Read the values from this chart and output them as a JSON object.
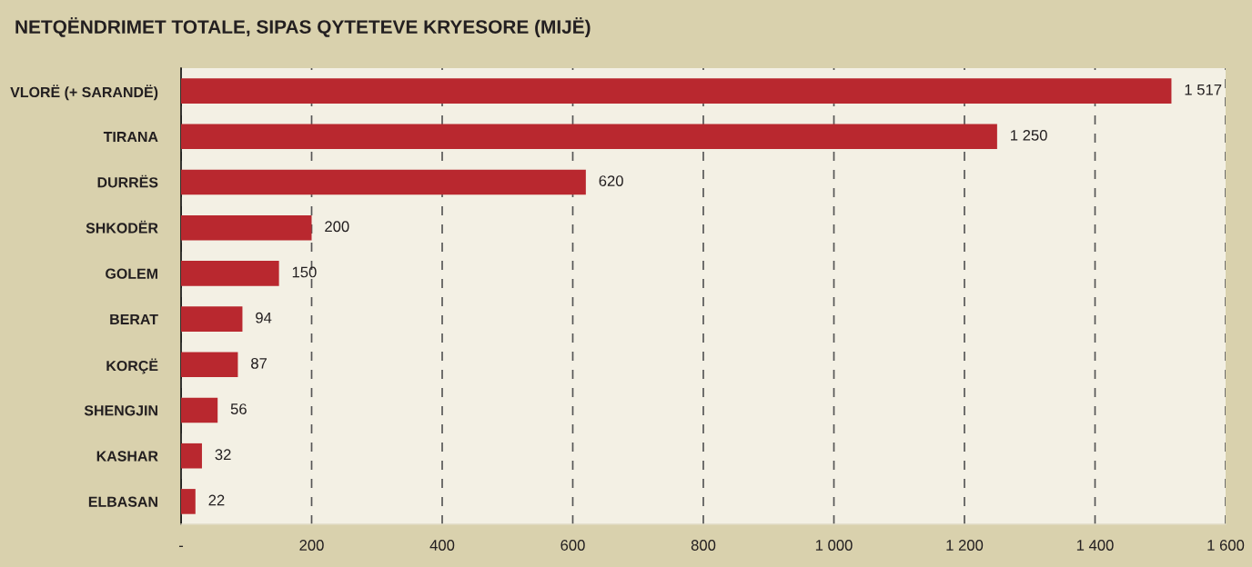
{
  "chart_data": {
    "type": "bar",
    "orientation": "horizontal",
    "title": "NETQËNDRIMET TOTALE, SIPAS QYTETEVE KRYESORE (MIJË)",
    "categories": [
      "VLORË (+ SARANDË)",
      "TIRANA",
      "DURRËS",
      "SHKODËR",
      "GOLEM",
      "BERAT",
      "KORÇË",
      "SHENGJIN",
      "KASHAR",
      "ELBASAN"
    ],
    "values": [
      1517,
      1250,
      620,
      200,
      150,
      94,
      87,
      56,
      32,
      22
    ],
    "value_labels": [
      "1 517",
      "1 250",
      "620",
      "200",
      "150",
      "94",
      "87",
      "56",
      "32",
      "22"
    ],
    "color": "#b9282f",
    "xlim": [
      0,
      1600
    ],
    "xticks": [
      {
        "value": 0,
        "label": "-"
      },
      200,
      400,
      600,
      800,
      {
        "value": 1000,
        "label": "1 000"
      },
      {
        "value": 1200,
        "label": "1 200"
      },
      {
        "value": 1400,
        "label": "1 400"
      },
      {
        "value": 1600,
        "label": "1 600"
      }
    ],
    "grid": "x"
  }
}
